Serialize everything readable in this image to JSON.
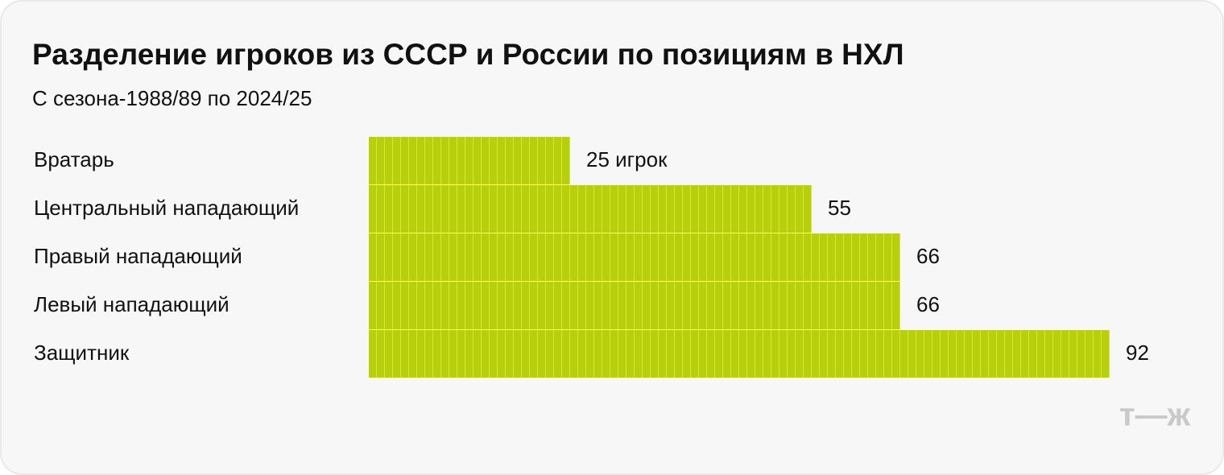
{
  "chart_data": {
    "type": "bar",
    "orientation": "horizontal",
    "title": "Разделение игроков из СССР и России по позициям в НХЛ",
    "subtitle": "С сезона-1988/89 по 2024/25",
    "categories": [
      "Вратарь",
      "Центральный нападающий",
      "Правый нападающий",
      "Левый нападающий",
      "Защитник"
    ],
    "values": [
      25,
      55,
      66,
      66,
      92
    ],
    "value_labels": [
      "25 игрок",
      "55",
      "66",
      "66",
      "92"
    ],
    "color": "#b7cf0c",
    "logo": "т—ж"
  }
}
